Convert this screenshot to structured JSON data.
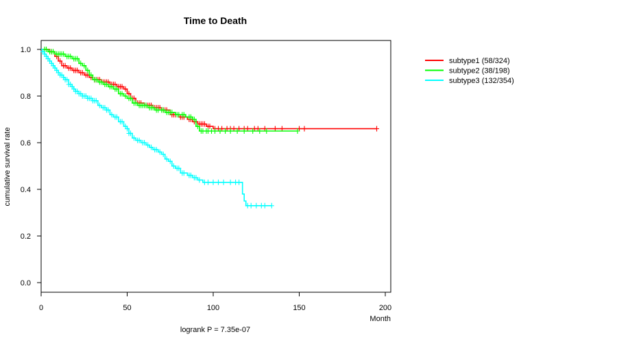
{
  "chart_data": {
    "type": "line",
    "title": "Time to Death",
    "xlabel": "Month",
    "ylabel": "cumulative survival rate",
    "footnote": "logrank P = 7.35e-07",
    "xlim": [
      0,
      200
    ],
    "ylim": [
      0,
      1
    ],
    "x_ticks": [
      0,
      50,
      100,
      150,
      200
    ],
    "y_ticks": [
      0.0,
      0.2,
      0.4,
      0.6,
      0.8,
      1.0
    ],
    "x_tick_labels": [
      "0",
      "50",
      "100",
      "150",
      "200"
    ],
    "y_tick_labels": [
      "0.0",
      "0.2",
      "0.4",
      "0.6",
      "0.8",
      "1.0"
    ],
    "legend_position": "top-right, outside plot",
    "series": [
      {
        "name": "subtype1 (58/324)",
        "color": "#FF0000",
        "steps": [
          [
            0,
            1.0
          ],
          [
            5,
            0.99
          ],
          [
            8,
            0.97
          ],
          [
            10,
            0.95
          ],
          [
            12,
            0.93
          ],
          [
            15,
            0.92
          ],
          [
            18,
            0.91
          ],
          [
            22,
            0.9
          ],
          [
            25,
            0.89
          ],
          [
            28,
            0.88
          ],
          [
            30,
            0.87
          ],
          [
            35,
            0.86
          ],
          [
            40,
            0.85
          ],
          [
            44,
            0.84
          ],
          [
            48,
            0.83
          ],
          [
            50,
            0.81
          ],
          [
            52,
            0.79
          ],
          [
            55,
            0.77
          ],
          [
            60,
            0.76
          ],
          [
            65,
            0.75
          ],
          [
            70,
            0.74
          ],
          [
            75,
            0.72
          ],
          [
            80,
            0.71
          ],
          [
            85,
            0.7
          ],
          [
            88,
            0.69
          ],
          [
            91,
            0.68
          ],
          [
            96,
            0.67
          ],
          [
            100,
            0.66
          ],
          [
            195,
            0.66
          ]
        ],
        "censors": [
          3,
          6,
          9,
          11,
          13,
          14,
          16,
          17,
          19,
          20,
          21,
          23,
          24,
          26,
          27,
          29,
          31,
          32,
          33,
          34,
          36,
          37,
          38,
          39,
          41,
          42,
          43,
          45,
          46,
          47,
          49,
          51,
          53,
          54,
          56,
          57,
          58,
          61,
          62,
          63,
          64,
          66,
          67,
          68,
          69,
          71,
          72,
          73,
          76,
          77,
          78,
          81,
          82,
          83,
          86,
          87,
          89,
          92,
          93,
          94,
          95,
          97,
          98,
          101,
          103,
          105,
          108,
          110,
          112,
          115,
          118,
          120,
          124,
          126,
          130,
          136,
          140,
          150,
          153,
          195
        ]
      },
      {
        "name": "subtype2 (38/198)",
        "color": "#00FF00",
        "steps": [
          [
            0,
            1.0
          ],
          [
            4,
            0.99
          ],
          [
            8,
            0.98
          ],
          [
            14,
            0.97
          ],
          [
            18,
            0.96
          ],
          [
            22,
            0.94
          ],
          [
            24,
            0.93
          ],
          [
            26,
            0.91
          ],
          [
            28,
            0.89
          ],
          [
            30,
            0.87
          ],
          [
            33,
            0.86
          ],
          [
            36,
            0.85
          ],
          [
            39,
            0.84
          ],
          [
            42,
            0.83
          ],
          [
            45,
            0.81
          ],
          [
            48,
            0.8
          ],
          [
            50,
            0.79
          ],
          [
            53,
            0.77
          ],
          [
            56,
            0.76
          ],
          [
            62,
            0.75
          ],
          [
            66,
            0.74
          ],
          [
            72,
            0.73
          ],
          [
            78,
            0.72
          ],
          [
            84,
            0.71
          ],
          [
            88,
            0.7
          ],
          [
            90,
            0.67
          ],
          [
            92,
            0.65
          ],
          [
            149,
            0.65
          ]
        ],
        "censors": [
          2,
          3,
          5,
          6,
          7,
          9,
          10,
          11,
          12,
          13,
          15,
          16,
          17,
          19,
          20,
          21,
          23,
          25,
          27,
          29,
          31,
          32,
          34,
          35,
          37,
          38,
          40,
          41,
          43,
          44,
          46,
          47,
          49,
          51,
          52,
          54,
          55,
          57,
          58,
          59,
          60,
          61,
          63,
          64,
          65,
          67,
          68,
          70,
          71,
          73,
          74,
          75,
          76,
          79,
          80,
          82,
          83,
          86,
          87,
          89,
          91,
          93,
          94,
          96,
          97,
          99,
          101,
          104,
          107,
          110,
          114,
          118,
          123,
          127,
          131,
          149
        ]
      },
      {
        "name": "subtype3 (132/354)",
        "color": "#00FFFF",
        "steps": [
          [
            0,
            1.0
          ],
          [
            1,
            0.99
          ],
          [
            2,
            0.98
          ],
          [
            3,
            0.97
          ],
          [
            4,
            0.96
          ],
          [
            5,
            0.95
          ],
          [
            6,
            0.94
          ],
          [
            7,
            0.93
          ],
          [
            8,
            0.92
          ],
          [
            9,
            0.91
          ],
          [
            10,
            0.9
          ],
          [
            11,
            0.89
          ],
          [
            13,
            0.88
          ],
          [
            14,
            0.87
          ],
          [
            16,
            0.85
          ],
          [
            18,
            0.84
          ],
          [
            19,
            0.83
          ],
          [
            20,
            0.82
          ],
          [
            22,
            0.81
          ],
          [
            24,
            0.8
          ],
          [
            27,
            0.79
          ],
          [
            30,
            0.78
          ],
          [
            33,
            0.76
          ],
          [
            35,
            0.75
          ],
          [
            38,
            0.74
          ],
          [
            40,
            0.72
          ],
          [
            42,
            0.71
          ],
          [
            45,
            0.69
          ],
          [
            48,
            0.67
          ],
          [
            50,
            0.66
          ],
          [
            51,
            0.64
          ],
          [
            53,
            0.62
          ],
          [
            55,
            0.61
          ],
          [
            58,
            0.6
          ],
          [
            61,
            0.59
          ],
          [
            63,
            0.58
          ],
          [
            65,
            0.57
          ],
          [
            68,
            0.56
          ],
          [
            70,
            0.55
          ],
          [
            72,
            0.53
          ],
          [
            74,
            0.52
          ],
          [
            76,
            0.5
          ],
          [
            78,
            0.49
          ],
          [
            81,
            0.47
          ],
          [
            85,
            0.46
          ],
          [
            88,
            0.45
          ],
          [
            91,
            0.44
          ],
          [
            94,
            0.43
          ],
          [
            116,
            0.43
          ],
          [
            117,
            0.38
          ],
          [
            118,
            0.35
          ],
          [
            119,
            0.33
          ],
          [
            134,
            0.33
          ]
        ],
        "censors": [
          1,
          2,
          3,
          4,
          5,
          6,
          7,
          8,
          9,
          10,
          11,
          12,
          13,
          14,
          15,
          16,
          17,
          18,
          19,
          20,
          21,
          22,
          23,
          24,
          25,
          26,
          27,
          28,
          29,
          30,
          31,
          32,
          34,
          36,
          37,
          38,
          39,
          41,
          43,
          44,
          46,
          47,
          49,
          50,
          51,
          52,
          54,
          56,
          57,
          59,
          60,
          62,
          64,
          66,
          67,
          69,
          71,
          73,
          75,
          77,
          79,
          80,
          82,
          83,
          86,
          87,
          89,
          90,
          92,
          95,
          97,
          100,
          103,
          106,
          110,
          113,
          115,
          120,
          122,
          125,
          128,
          130,
          134
        ]
      }
    ]
  }
}
